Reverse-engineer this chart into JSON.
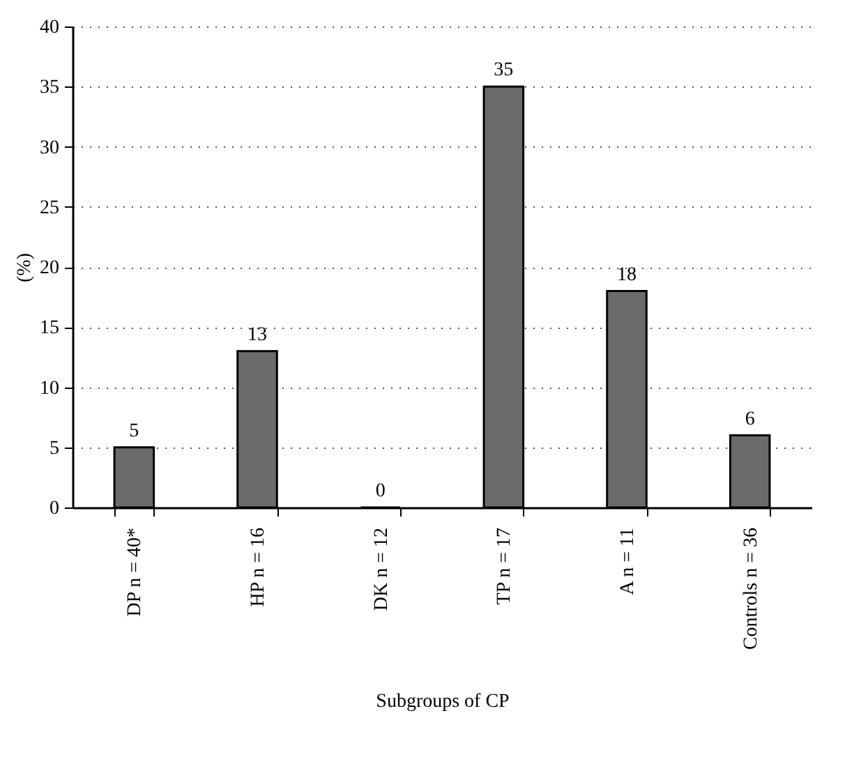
{
  "chart_data": {
    "type": "bar",
    "xlabel": "Subgroups of CP",
    "ylabel": "(%)",
    "categories": [
      "DP n = 40*",
      "HP n = 16",
      "DK n = 12",
      "TP n = 17",
      "A n = 11",
      "Controls n = 36"
    ],
    "values": [
      5,
      13,
      0,
      35,
      18,
      6
    ],
    "color": "#6b6b6b",
    "ylim": [
      0,
      40
    ],
    "yticks": [
      0,
      5,
      10,
      15,
      20,
      25,
      30,
      35,
      40
    ],
    "grid": "y",
    "data_labels": true
  }
}
